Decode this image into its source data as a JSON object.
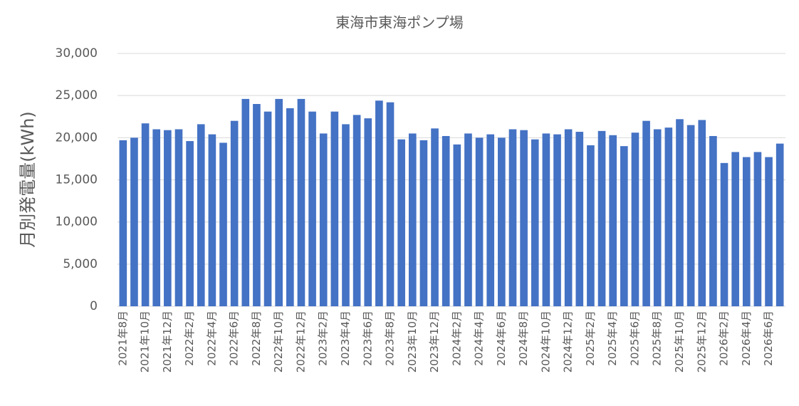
{
  "chart_data": {
    "type": "bar",
    "title": "東海市東海ポンプ場",
    "y_label": "月別発電量(kWh)",
    "categories": [
      "2021年8月",
      null,
      "2021年10月",
      null,
      "2021年12月",
      null,
      "2022年2月",
      null,
      "2022年4月",
      null,
      "2022年6月",
      null,
      "2022年8月",
      null,
      "2022年10月",
      null,
      "2022年12月",
      null,
      "2023年2月",
      null,
      "2023年4月",
      null,
      "2023年6月",
      null,
      "2023年8月",
      null,
      "2023年10月",
      null,
      "2023年12月",
      null,
      "2024年2月",
      null,
      "2024年4月",
      null,
      "2024年6月",
      null,
      "2024年8月",
      null,
      "2024年10月",
      null,
      "2024年12月",
      null,
      "2025年2月",
      null,
      "2025年4月",
      null,
      "2025年6月",
      null,
      "2025年8月",
      null,
      "2025年10月",
      null,
      "2025年12月",
      null,
      "2026年2月",
      null,
      "2026年4月",
      null,
      "2026年6月",
      null
    ],
    "values": [
      19700,
      20000,
      21700,
      21000,
      20900,
      21000,
      19600,
      21600,
      20400,
      19400,
      22000,
      24600,
      24000,
      23100,
      24600,
      23500,
      24600,
      23100,
      20500,
      23100,
      21600,
      22700,
      22300,
      24400,
      24200,
      19800,
      20500,
      19700,
      21100,
      20200,
      19200,
      20500,
      20000,
      20400,
      20000,
      21000,
      20900,
      19800,
      20500,
      20400,
      21000,
      20700,
      19100,
      20800,
      20300,
      19000,
      20600,
      22000,
      21000,
      21200,
      22200,
      21500,
      22100,
      20200,
      17000,
      18300,
      17700,
      18300,
      17700,
      19300
    ],
    "color": "#4472c4",
    "ylim": [
      0,
      30000
    ],
    "yticks": [
      0,
      {
        "value": 5000,
        "label": "5,000"
      },
      {
        "value": 10000,
        "label": "10,000"
      },
      {
        "value": 15000,
        "label": "15,000"
      },
      {
        "value": 20000,
        "label": "20,000"
      },
      {
        "value": 25000,
        "label": "25,000"
      },
      {
        "value": 30000,
        "label": "30,000"
      }
    ],
    "grid": true
  }
}
